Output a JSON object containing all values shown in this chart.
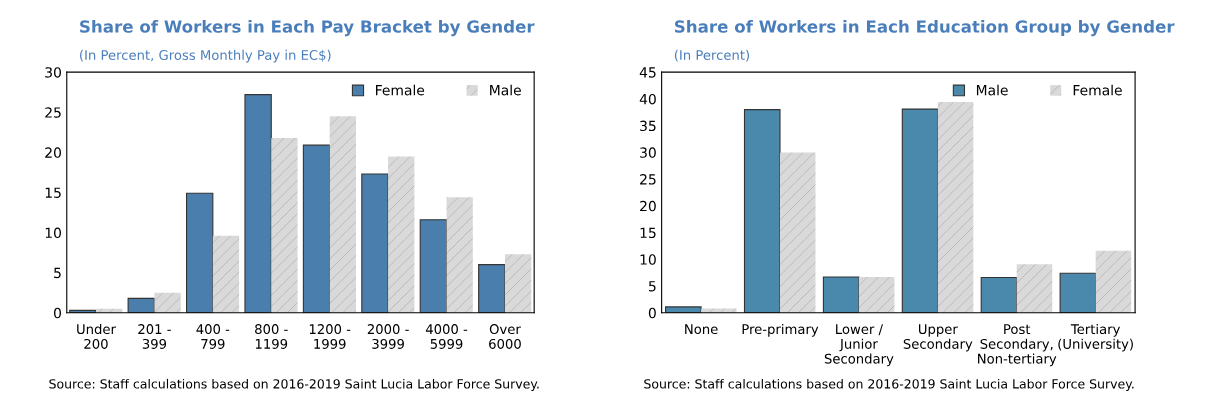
{
  "chart_data": [
    {
      "type": "bar",
      "title": "Share of Workers in Each Pay Bracket by Gender",
      "subtitle": "(In Percent, Gross Monthly Pay in EC$)",
      "categories": [
        "Under\n200",
        "201 -\n399",
        "400 -\n799",
        "800 -\n1199",
        "1200 -\n1999",
        "2000 -\n3999",
        "4000 -\n5999",
        "Over\n6000"
      ],
      "series": [
        {
          "name": "Female",
          "color": "#4a7fad",
          "values": [
            0.3,
            1.8,
            14.9,
            27.2,
            20.9,
            17.3,
            11.6,
            6.0
          ]
        },
        {
          "name": "Male",
          "color": "#d9d9d9",
          "values": [
            0.5,
            2.5,
            9.6,
            21.8,
            24.5,
            19.5,
            14.4,
            7.3
          ]
        }
      ],
      "ylim": [
        0,
        30
      ],
      "yticks": [
        0,
        5,
        10,
        15,
        20,
        25,
        30
      ],
      "legend": "top right",
      "grid": false,
      "annotations": [
        "Source: Staff calculations based on 2016-2019 Saint Lucia Labor Force Survey."
      ]
    },
    {
      "type": "bar",
      "title": "Share of Workers in Each Education Group by Gender",
      "subtitle": "(In Percent)",
      "categories": [
        "None",
        "Pre-primary",
        "Lower /\nJunior\nSecondary",
        "Upper\nSecondary",
        "Post\nSecondary,\nNon-tertiary",
        "Tertiary\n(University)"
      ],
      "series": [
        {
          "name": "Male",
          "color": "#4a89ab",
          "values": [
            1.1,
            38.0,
            6.7,
            38.1,
            6.6,
            7.4
          ]
        },
        {
          "name": "Female",
          "color": "#d9d9d9",
          "values": [
            0.8,
            30.0,
            6.7,
            39.4,
            9.1,
            11.6
          ]
        }
      ],
      "ylim": [
        0,
        45
      ],
      "yticks": [
        0,
        5,
        10,
        15,
        20,
        25,
        30,
        35,
        40,
        45
      ],
      "legend": "top right",
      "grid": false,
      "annotations": [
        "Source: Staff calculations based on 2016-2019 Saint Lucia Labor Force Survey."
      ]
    }
  ]
}
